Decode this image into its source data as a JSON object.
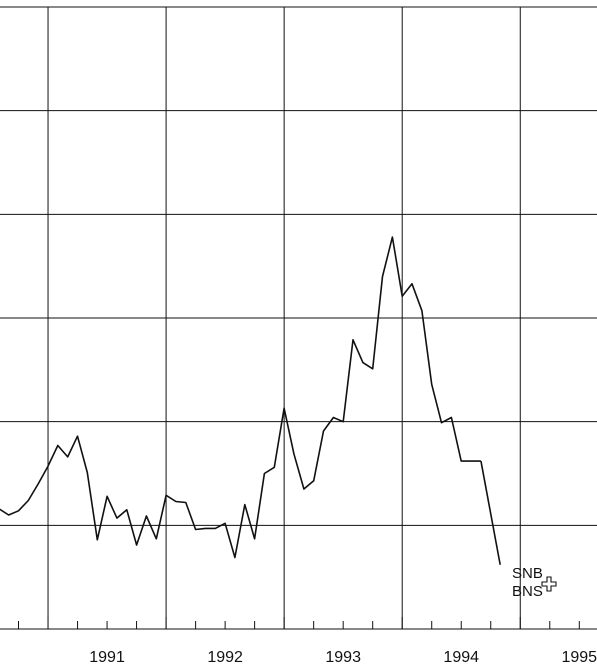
{
  "chart_data": {
    "type": "line",
    "title": "",
    "xlabel": "",
    "ylabel": "",
    "x_tick_labels": [
      "1991",
      "1992",
      "1993",
      "1994",
      "1995"
    ],
    "xlim": [
      1990.5,
      1995.65
    ],
    "ylim": [
      0,
      6
    ],
    "grid": true,
    "series": [
      {
        "x": [
          1990.5,
          1990.583,
          1990.667,
          1990.75,
          1990.833,
          1990.917,
          1991.0,
          1991.083,
          1991.167,
          1991.25,
          1991.333,
          1991.417,
          1991.5,
          1991.583,
          1991.667,
          1991.75,
          1991.833,
          1991.917,
          1992.0,
          1992.083,
          1992.167,
          1992.25,
          1992.333,
          1992.417,
          1992.5,
          1992.583,
          1992.667,
          1992.75,
          1992.833,
          1992.917,
          1993.0,
          1993.083,
          1993.167,
          1993.25,
          1993.333,
          1993.417,
          1993.5,
          1993.583,
          1993.667,
          1993.75,
          1993.833,
          1993.917,
          1994.0,
          1994.083,
          1994.167,
          1994.25,
          1994.333,
          1994.417,
          1994.5,
          1994.583,
          1994.667
        ],
        "y": [
          0.72,
          1.16,
          1.1,
          1.14,
          1.24,
          1.4,
          1.57,
          1.77,
          1.66,
          1.86,
          1.51,
          0.86,
          1.28,
          1.07,
          1.15,
          0.81,
          1.09,
          0.87,
          1.29,
          1.23,
          1.22,
          0.96,
          0.97,
          0.97,
          1.02,
          0.69,
          1.2,
          0.87,
          1.5,
          1.56,
          2.13,
          1.69,
          1.35,
          1.43,
          1.91,
          2.04,
          2.0,
          2.79,
          2.57,
          2.51,
          3.4,
          3.78,
          3.21,
          3.33,
          3.07,
          2.36,
          1.99,
          2.04,
          1.62,
          1.62,
          1.62
        ]
      }
    ],
    "tail": {
      "x": [
        1994.667,
        1994.83
      ],
      "y": [
        1.62,
        0.62
      ]
    }
  },
  "logo": {
    "line1": "SNB",
    "line2": "BNS"
  }
}
